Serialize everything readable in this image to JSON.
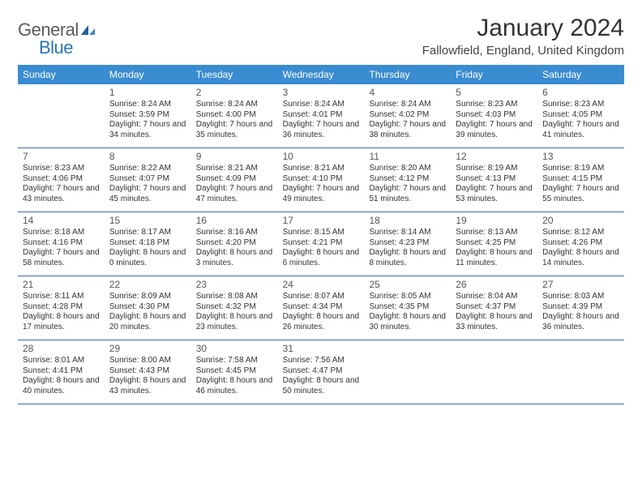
{
  "brand": {
    "general": "General",
    "blue": "Blue"
  },
  "title": "January 2024",
  "location": "Fallowfield, England, United Kingdom",
  "colors": {
    "header_bg": "#3a8cd1",
    "header_text": "#ffffff",
    "row_border": "#3a6ea5",
    "logo_gray": "#5a5a5a",
    "logo_blue": "#2a76b8",
    "body_text": "#333333",
    "background": "#ffffff"
  },
  "typography": {
    "month_title_fontsize_pt": 22,
    "location_fontsize_pt": 11,
    "day_header_fontsize_pt": 9,
    "day_number_fontsize_pt": 9,
    "cell_text_fontsize_pt": 7.5
  },
  "layout": {
    "columns": 7,
    "rows": 5,
    "first_day_column_index": 1
  },
  "day_names": [
    "Sunday",
    "Monday",
    "Tuesday",
    "Wednesday",
    "Thursday",
    "Friday",
    "Saturday"
  ],
  "days": [
    {
      "n": "1",
      "sunrise": "Sunrise: 8:24 AM",
      "sunset": "Sunset: 3:59 PM",
      "daylight": "Daylight: 7 hours and 34 minutes."
    },
    {
      "n": "2",
      "sunrise": "Sunrise: 8:24 AM",
      "sunset": "Sunset: 4:00 PM",
      "daylight": "Daylight: 7 hours and 35 minutes."
    },
    {
      "n": "3",
      "sunrise": "Sunrise: 8:24 AM",
      "sunset": "Sunset: 4:01 PM",
      "daylight": "Daylight: 7 hours and 36 minutes."
    },
    {
      "n": "4",
      "sunrise": "Sunrise: 8:24 AM",
      "sunset": "Sunset: 4:02 PM",
      "daylight": "Daylight: 7 hours and 38 minutes."
    },
    {
      "n": "5",
      "sunrise": "Sunrise: 8:23 AM",
      "sunset": "Sunset: 4:03 PM",
      "daylight": "Daylight: 7 hours and 39 minutes."
    },
    {
      "n": "6",
      "sunrise": "Sunrise: 8:23 AM",
      "sunset": "Sunset: 4:05 PM",
      "daylight": "Daylight: 7 hours and 41 minutes."
    },
    {
      "n": "7",
      "sunrise": "Sunrise: 8:23 AM",
      "sunset": "Sunset: 4:06 PM",
      "daylight": "Daylight: 7 hours and 43 minutes."
    },
    {
      "n": "8",
      "sunrise": "Sunrise: 8:22 AM",
      "sunset": "Sunset: 4:07 PM",
      "daylight": "Daylight: 7 hours and 45 minutes."
    },
    {
      "n": "9",
      "sunrise": "Sunrise: 8:21 AM",
      "sunset": "Sunset: 4:09 PM",
      "daylight": "Daylight: 7 hours and 47 minutes."
    },
    {
      "n": "10",
      "sunrise": "Sunrise: 8:21 AM",
      "sunset": "Sunset: 4:10 PM",
      "daylight": "Daylight: 7 hours and 49 minutes."
    },
    {
      "n": "11",
      "sunrise": "Sunrise: 8:20 AM",
      "sunset": "Sunset: 4:12 PM",
      "daylight": "Daylight: 7 hours and 51 minutes."
    },
    {
      "n": "12",
      "sunrise": "Sunrise: 8:19 AM",
      "sunset": "Sunset: 4:13 PM",
      "daylight": "Daylight: 7 hours and 53 minutes."
    },
    {
      "n": "13",
      "sunrise": "Sunrise: 8:19 AM",
      "sunset": "Sunset: 4:15 PM",
      "daylight": "Daylight: 7 hours and 55 minutes."
    },
    {
      "n": "14",
      "sunrise": "Sunrise: 8:18 AM",
      "sunset": "Sunset: 4:16 PM",
      "daylight": "Daylight: 7 hours and 58 minutes."
    },
    {
      "n": "15",
      "sunrise": "Sunrise: 8:17 AM",
      "sunset": "Sunset: 4:18 PM",
      "daylight": "Daylight: 8 hours and 0 minutes."
    },
    {
      "n": "16",
      "sunrise": "Sunrise: 8:16 AM",
      "sunset": "Sunset: 4:20 PM",
      "daylight": "Daylight: 8 hours and 3 minutes."
    },
    {
      "n": "17",
      "sunrise": "Sunrise: 8:15 AM",
      "sunset": "Sunset: 4:21 PM",
      "daylight": "Daylight: 8 hours and 6 minutes."
    },
    {
      "n": "18",
      "sunrise": "Sunrise: 8:14 AM",
      "sunset": "Sunset: 4:23 PM",
      "daylight": "Daylight: 8 hours and 8 minutes."
    },
    {
      "n": "19",
      "sunrise": "Sunrise: 8:13 AM",
      "sunset": "Sunset: 4:25 PM",
      "daylight": "Daylight: 8 hours and 11 minutes."
    },
    {
      "n": "20",
      "sunrise": "Sunrise: 8:12 AM",
      "sunset": "Sunset: 4:26 PM",
      "daylight": "Daylight: 8 hours and 14 minutes."
    },
    {
      "n": "21",
      "sunrise": "Sunrise: 8:11 AM",
      "sunset": "Sunset: 4:28 PM",
      "daylight": "Daylight: 8 hours and 17 minutes."
    },
    {
      "n": "22",
      "sunrise": "Sunrise: 8:09 AM",
      "sunset": "Sunset: 4:30 PM",
      "daylight": "Daylight: 8 hours and 20 minutes."
    },
    {
      "n": "23",
      "sunrise": "Sunrise: 8:08 AM",
      "sunset": "Sunset: 4:32 PM",
      "daylight": "Daylight: 8 hours and 23 minutes."
    },
    {
      "n": "24",
      "sunrise": "Sunrise: 8:07 AM",
      "sunset": "Sunset: 4:34 PM",
      "daylight": "Daylight: 8 hours and 26 minutes."
    },
    {
      "n": "25",
      "sunrise": "Sunrise: 8:05 AM",
      "sunset": "Sunset: 4:35 PM",
      "daylight": "Daylight: 8 hours and 30 minutes."
    },
    {
      "n": "26",
      "sunrise": "Sunrise: 8:04 AM",
      "sunset": "Sunset: 4:37 PM",
      "daylight": "Daylight: 8 hours and 33 minutes."
    },
    {
      "n": "27",
      "sunrise": "Sunrise: 8:03 AM",
      "sunset": "Sunset: 4:39 PM",
      "daylight": "Daylight: 8 hours and 36 minutes."
    },
    {
      "n": "28",
      "sunrise": "Sunrise: 8:01 AM",
      "sunset": "Sunset: 4:41 PM",
      "daylight": "Daylight: 8 hours and 40 minutes."
    },
    {
      "n": "29",
      "sunrise": "Sunrise: 8:00 AM",
      "sunset": "Sunset: 4:43 PM",
      "daylight": "Daylight: 8 hours and 43 minutes."
    },
    {
      "n": "30",
      "sunrise": "Sunrise: 7:58 AM",
      "sunset": "Sunset: 4:45 PM",
      "daylight": "Daylight: 8 hours and 46 minutes."
    },
    {
      "n": "31",
      "sunrise": "Sunrise: 7:56 AM",
      "sunset": "Sunset: 4:47 PM",
      "daylight": "Daylight: 8 hours and 50 minutes."
    }
  ]
}
